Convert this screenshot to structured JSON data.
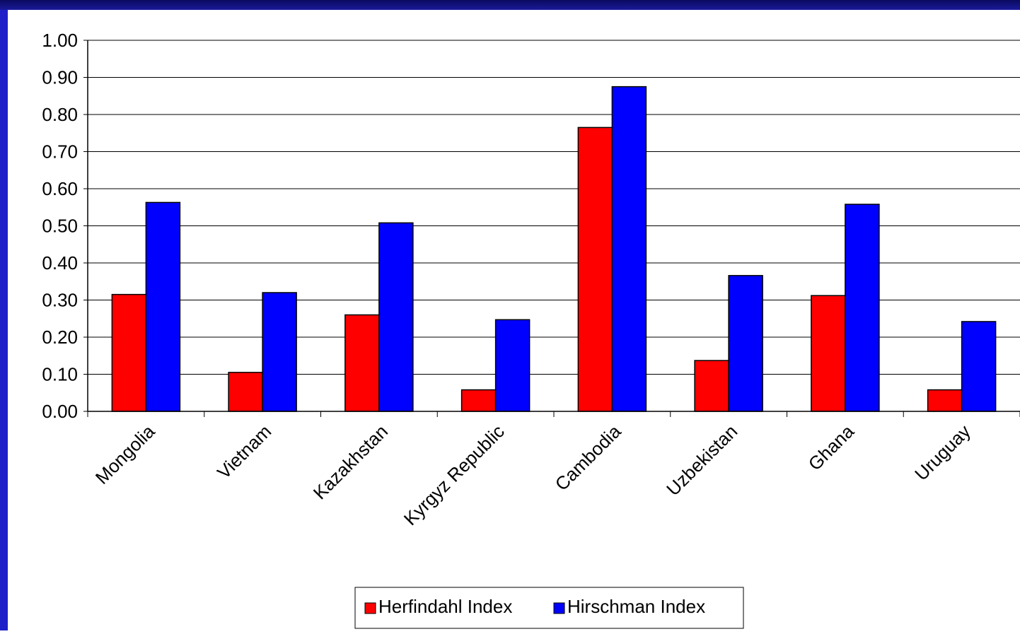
{
  "chart_data": {
    "type": "bar",
    "categories": [
      "Mongolia",
      "Vietnam",
      "Kazakhstan",
      "Kyrgyz Republic",
      "Cambodia",
      "Uzbekistan",
      "Ghana",
      "Uruguay"
    ],
    "series": [
      {
        "name": "Herfindahl Index",
        "color": "#ff0000",
        "values": [
          0.315,
          0.105,
          0.26,
          0.058,
          0.765,
          0.137,
          0.312,
          0.058
        ]
      },
      {
        "name": "Hirschman Index",
        "color": "#0000ff",
        "values": [
          0.563,
          0.32,
          0.508,
          0.247,
          0.875,
          0.366,
          0.558,
          0.242
        ]
      }
    ],
    "ylim": [
      0,
      1
    ],
    "yticks": [
      "0.00",
      "0.10",
      "0.20",
      "0.30",
      "0.40",
      "0.50",
      "0.60",
      "0.70",
      "0.80",
      "0.90",
      "1.00"
    ],
    "grid": true,
    "legend": "bottom-center"
  }
}
